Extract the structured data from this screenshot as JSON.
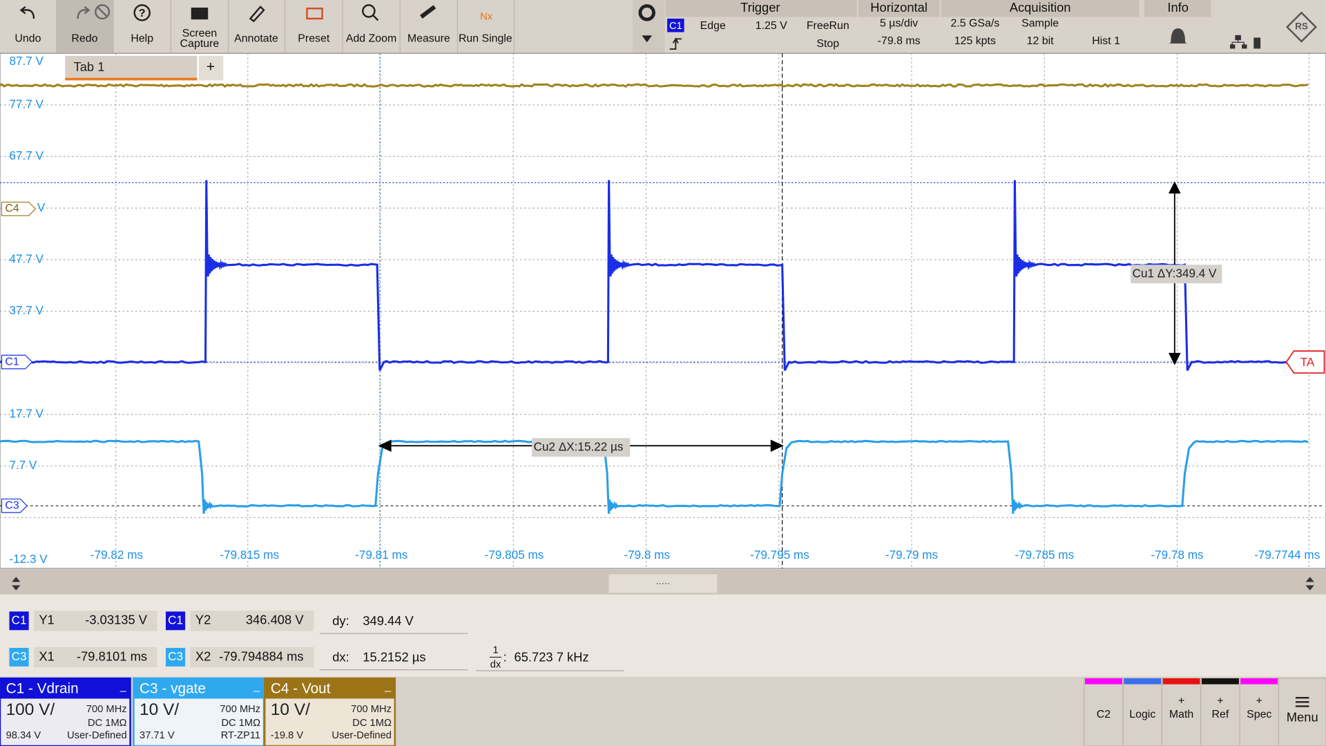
{
  "toolbar": {
    "buttons": [
      {
        "label": "Undo"
      },
      {
        "label": "Redo"
      },
      {
        "label": "Help"
      },
      {
        "lines": [
          "Screen",
          "Capture"
        ]
      },
      {
        "label": "Annotate"
      },
      {
        "label": "Preset"
      },
      {
        "label": "Add Zoom"
      },
      {
        "label": "Measure"
      },
      {
        "label": "Run Single",
        "icon_text": "Nx"
      }
    ]
  },
  "trigger": {
    "title": "Trigger",
    "source": "C1",
    "type": "Edge",
    "level": "1.25 V",
    "mode": "FreeRun",
    "state": "Stop"
  },
  "horizontal": {
    "title": "Horizontal",
    "scale": "5 µs/div",
    "position": "-79.8 ms"
  },
  "acquisition": {
    "title": "Acquisition",
    "rate": "2.5 GSa/s",
    "mode": "Sample",
    "points": "125 kpts",
    "resolution": "12 bit",
    "hist": "Hist 1"
  },
  "info": {
    "title": "Info"
  },
  "tab": {
    "label": "Tab 1",
    "add": "+"
  },
  "y_labels": [
    "87.7 V",
    "77.7 V",
    "67.7 V",
    "V",
    "47.7 V",
    "37.7 V",
    "17.7 V",
    "7.7 V",
    "-12.3 V"
  ],
  "x_labels": [
    "-79.82 ms",
    "-79.815 ms",
    "-79.81 ms",
    "-79.805 ms",
    "-79.8 ms",
    "-79.795 ms",
    "-79.79 ms",
    "-79.785 ms",
    "-79.78 ms",
    "-79.7744 ms"
  ],
  "markers": {
    "c4": "C4",
    "c1": "C1",
    "c3": "C3",
    "trigger": "TA"
  },
  "annotations": {
    "cu1": "Cu1 ΔY:349.4 V",
    "cu2": "Cu2 ΔX:15.22 µs"
  },
  "cursor_results": {
    "y1": {
      "source": "C1",
      "label": "Y1",
      "value": "-3.03135 V"
    },
    "y2": {
      "source": "C1",
      "label": "Y2",
      "value": "346.408 V"
    },
    "dy": {
      "label": "dy:",
      "value": "349.44 V"
    },
    "x1": {
      "source": "C3",
      "label": "X1",
      "value": "-79.8101 ms"
    },
    "x2": {
      "source": "C3",
      "label": "X2",
      "value": "-79.794884 ms"
    },
    "dx": {
      "label": "dx:",
      "value": "15.2152 µs"
    },
    "inv_dx": {
      "numerator": "1",
      "denominator": "dx",
      "colon": ":",
      "value": "65.723 7 kHz"
    }
  },
  "channels": [
    {
      "name": "C1 - Vdrain",
      "min": "_",
      "scale": "100 V/",
      "bandwidth": "700 MHz",
      "coupling": "DC 1MΩ",
      "offset": "98.34 V",
      "probe": "User-Defined"
    },
    {
      "name": "C3 - vgate",
      "min": "_",
      "scale": "10 V/",
      "bandwidth": "700 MHz",
      "coupling": "DC 1MΩ",
      "offset": "37.71 V",
      "probe": "RT-ZP11"
    },
    {
      "name": "C4 - Vout",
      "min": "_",
      "scale": "10 V/",
      "bandwidth": "700 MHz",
      "coupling": "DC 1MΩ",
      "offset": "-19.8 V",
      "probe": "User-Defined"
    }
  ],
  "side_buttons": [
    {
      "label": "C2"
    },
    {
      "label": "Logic"
    },
    {
      "plus": "+",
      "label": "Math"
    },
    {
      "plus": "+",
      "label": "Ref"
    },
    {
      "plus": "+",
      "label": "Spec"
    },
    {
      "label": "Menu"
    }
  ]
}
